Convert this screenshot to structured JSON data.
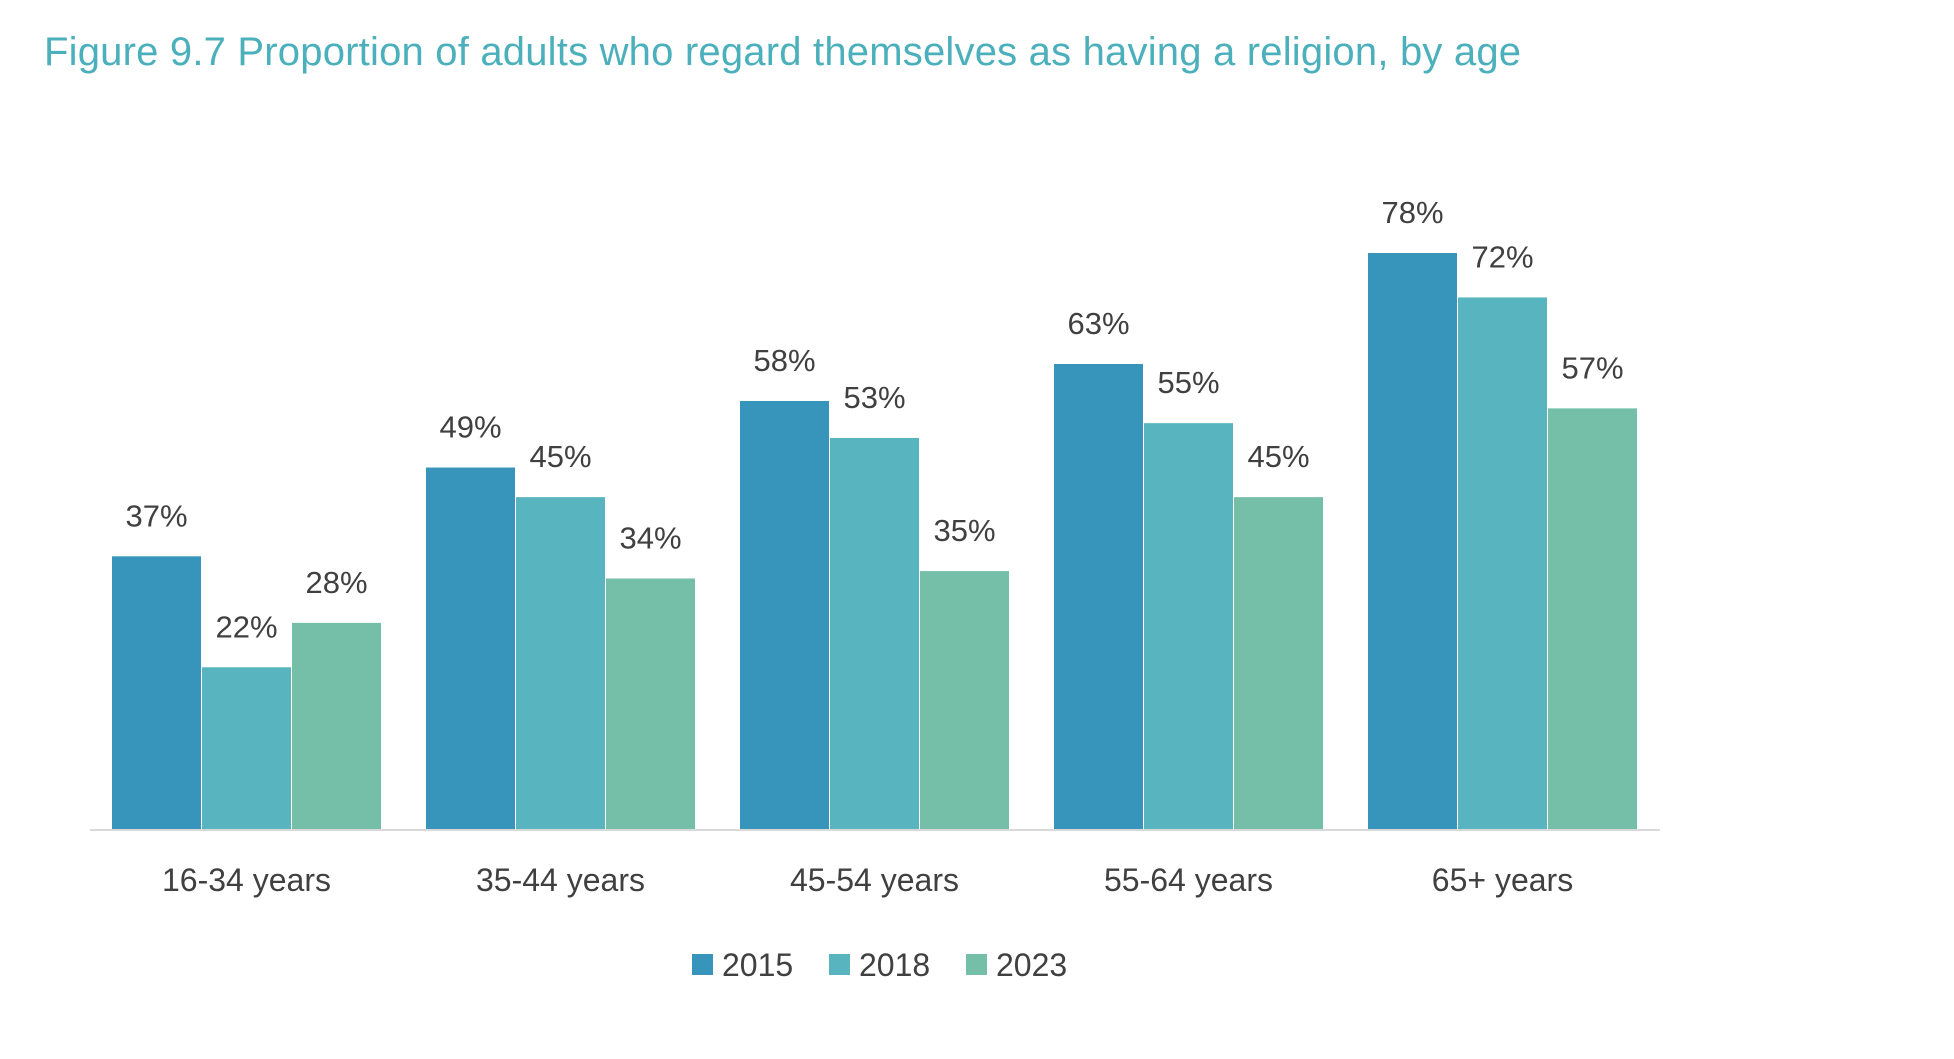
{
  "chart_data": {
    "type": "bar",
    "title": "Figure 9.7 Proportion of adults who regard themselves as having a religion, by age",
    "xlabel": "",
    "ylabel": "",
    "categories": [
      "16-34 years",
      "35-44 years",
      "45-54 years",
      "55-64 years",
      "65+ years"
    ],
    "series": [
      {
        "name": "2015",
        "values": [
          37,
          49,
          58,
          63,
          78
        ],
        "labels": [
          "37%",
          "49%",
          "58%",
          "63%",
          "78%"
        ],
        "color": "#3795bb"
      },
      {
        "name": "2018",
        "values": [
          22,
          45,
          53,
          55,
          72
        ],
        "labels": [
          "22%",
          "45%",
          "53%",
          "55%",
          "72%"
        ],
        "color": "#58b5bf"
      },
      {
        "name": "2023",
        "values": [
          28,
          34,
          35,
          45,
          57
        ],
        "labels": [
          "28%",
          "34%",
          "35%",
          "45%",
          "57%"
        ],
        "color": "#75bea7"
      }
    ],
    "ylim": [
      0,
      100
    ],
    "grid": false,
    "legend": "bottom"
  },
  "colors": {
    "title": "#4bb0bb",
    "axis": "#d9d9d9",
    "text": "#404040"
  }
}
